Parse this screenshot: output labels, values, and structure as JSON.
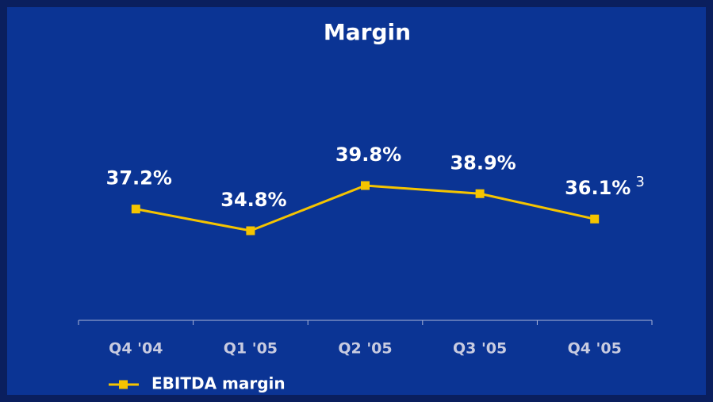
{
  "chart_data": {
    "type": "line",
    "title": "Margin",
    "categories": [
      "Q4 '04",
      "Q1 '05",
      "Q2 '05",
      "Q3 '05",
      "Q4 '05"
    ],
    "series": [
      {
        "name": "EBITDA margin",
        "color": "#f5c400",
        "values": [
          37.2,
          34.8,
          39.8,
          38.9,
          36.1
        ],
        "value_labels": [
          "37.2%",
          "34.8%",
          "39.8%",
          "38.9%",
          "36.1%"
        ]
      }
    ],
    "annotation": "3"
  }
}
